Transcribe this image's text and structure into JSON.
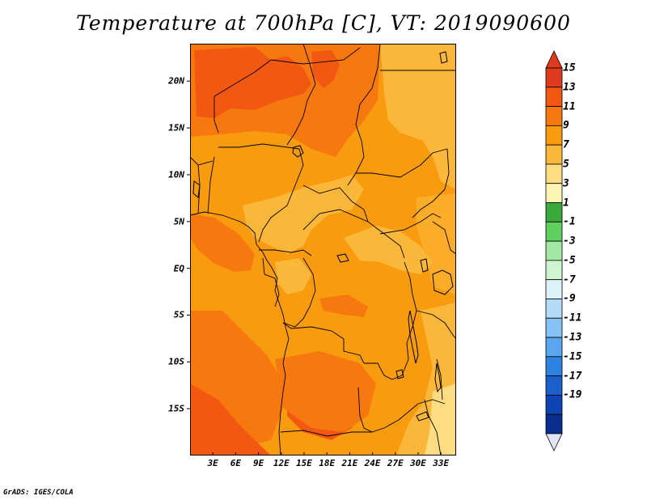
{
  "title": "Temperature at 700hPa [C], VT: 2019090600",
  "credit": "GrADS: IGES/COLA",
  "map": {
    "lat_range": [
      -20,
      24
    ],
    "lon_range": [
      0,
      35
    ],
    "lat_ticks": [
      {
        "value": 20,
        "label": "20N"
      },
      {
        "value": 15,
        "label": "15N"
      },
      {
        "value": 10,
        "label": "10N"
      },
      {
        "value": 5,
        "label": "5N"
      },
      {
        "value": 0,
        "label": "EQ"
      },
      {
        "value": -5,
        "label": "5S"
      },
      {
        "value": -10,
        "label": "10S"
      },
      {
        "value": -15,
        "label": "15S"
      }
    ],
    "lon_ticks": [
      {
        "value": 3,
        "label": "3E"
      },
      {
        "value": 6,
        "label": "6E"
      },
      {
        "value": 9,
        "label": "9E"
      },
      {
        "value": 12,
        "label": "12E"
      },
      {
        "value": 15,
        "label": "15E"
      },
      {
        "value": 18,
        "label": "18E"
      },
      {
        "value": 21,
        "label": "21E"
      },
      {
        "value": 24,
        "label": "24E"
      },
      {
        "value": 27,
        "label": "27E"
      },
      {
        "value": 30,
        "label": "30E"
      },
      {
        "value": 33,
        "label": "33E"
      }
    ]
  },
  "colorbar": {
    "labels": [
      "15",
      "13",
      "11",
      "9",
      "7",
      "5",
      "3",
      "1",
      "-1",
      "-3",
      "-5",
      "-7",
      "-9",
      "-11",
      "-13",
      "-15",
      "-17",
      "-19"
    ],
    "colors": [
      "#e03a1e",
      "#f25812",
      "#f6780f",
      "#f99b0e",
      "#fbb73a",
      "#fddc82",
      "#fdf5b3",
      "#3aa83a",
      "#5fd05f",
      "#a2e8a2",
      "#cff4cf",
      "#def2fb",
      "#b4dcf8",
      "#87c2f5",
      "#5aa7f0",
      "#2e82e0",
      "#1b5fcc",
      "#0e43b3",
      "#0a2e8e"
    ],
    "top_color": "#e03a1e",
    "bottom_color": "#e4e4f8"
  }
}
